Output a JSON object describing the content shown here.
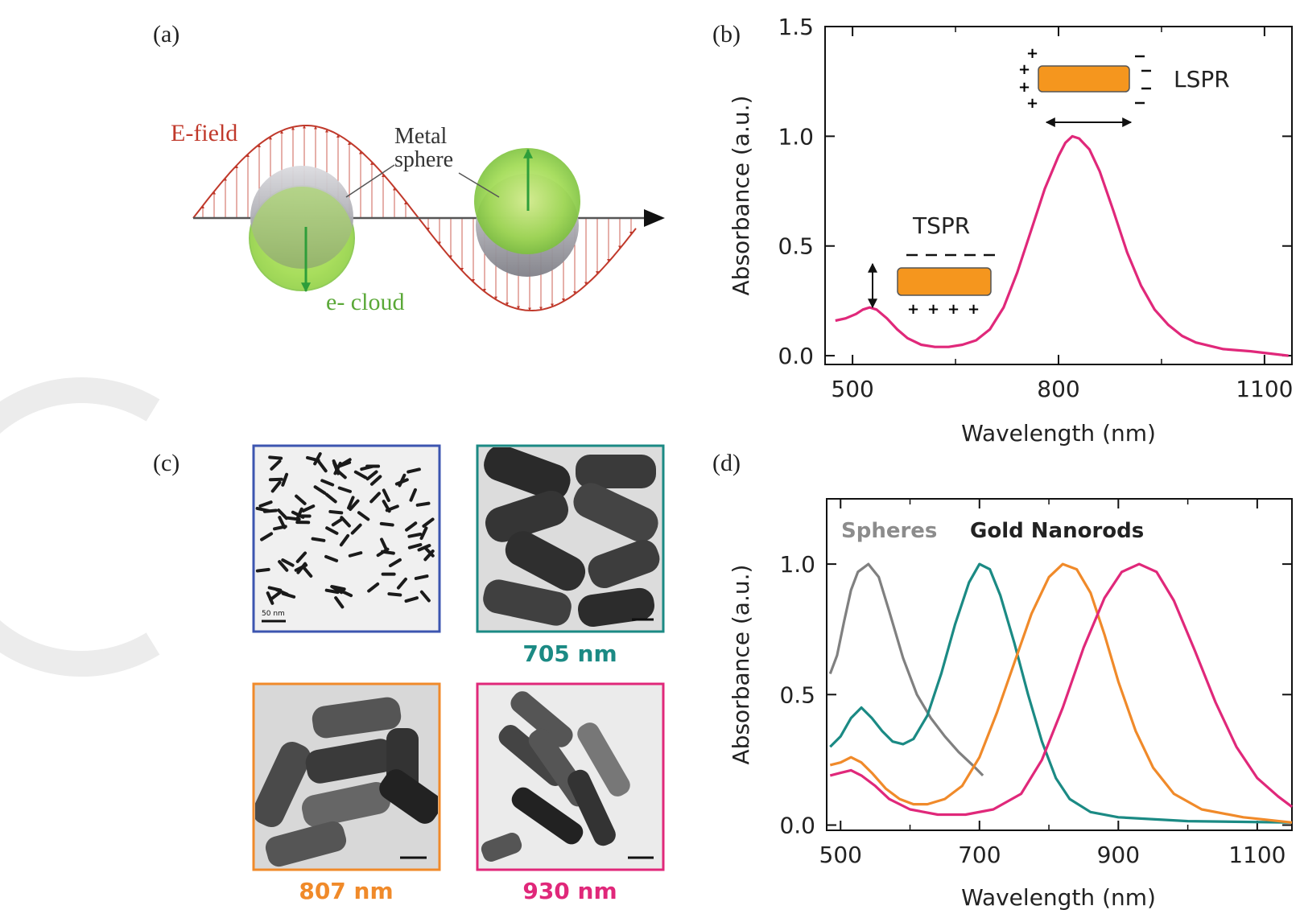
{
  "panels": {
    "a": {
      "label": "(a)",
      "e_field_label": "E-field",
      "metal_label_line1": "Metal",
      "metal_label_line2": "sphere",
      "cloud_label": "e- cloud",
      "colors": {
        "field": "#c0392b",
        "cloud": "#8bd24a",
        "sphere": "#9e9ea4",
        "arrow": "#2e9e3a"
      }
    },
    "b": {
      "label": "(b)",
      "tspr_label": "TSPR",
      "lspr_label": "LSPR",
      "rod_color": "#f5961e"
    },
    "c": {
      "label": "(c)",
      "images": [
        {
          "caption": "",
          "scale_text": "50 nm",
          "border_color": "#3c55b0"
        },
        {
          "caption": "705 nm",
          "scale_text": "",
          "border_color": "#1b8a84"
        },
        {
          "caption": "807 nm",
          "scale_text": "",
          "border_color": "#f08a2a"
        },
        {
          "caption": "930 nm",
          "scale_text": "",
          "border_color": "#e0287a"
        }
      ]
    },
    "d": {
      "label": "(d)",
      "legend_spheres": "Spheres",
      "legend_rods": "Gold Nanorods"
    }
  },
  "chart_data": [
    {
      "type": "line",
      "panel": "b",
      "xlabel": "Wavelength (nm)",
      "ylabel": "Absorbance (a.u.)",
      "xlim": [
        460,
        1140
      ],
      "ylim": [
        -0.04,
        1.5
      ],
      "xticks": [
        500,
        800,
        1100
      ],
      "xtick_labels": [
        "500",
        "800",
        "1100"
      ],
      "yticks": [
        0.0,
        0.5,
        1.0,
        1.5
      ],
      "ytick_labels": [
        "0.0",
        "0.5",
        "1.0",
        "1.5"
      ],
      "series": [
        {
          "color": "#e0287a",
          "points": [
            [
              475,
              0.16
            ],
            [
              490,
              0.17
            ],
            [
              505,
              0.19
            ],
            [
              515,
              0.21
            ],
            [
              525,
              0.22
            ],
            [
              535,
              0.21
            ],
            [
              550,
              0.17
            ],
            [
              565,
              0.12
            ],
            [
              580,
              0.08
            ],
            [
              600,
              0.05
            ],
            [
              620,
              0.04
            ],
            [
              640,
              0.04
            ],
            [
              660,
              0.05
            ],
            [
              680,
              0.07
            ],
            [
              700,
              0.12
            ],
            [
              720,
              0.22
            ],
            [
              740,
              0.38
            ],
            [
              760,
              0.57
            ],
            [
              780,
              0.76
            ],
            [
              800,
              0.91
            ],
            [
              810,
              0.97
            ],
            [
              820,
              1.0
            ],
            [
              830,
              0.99
            ],
            [
              845,
              0.94
            ],
            [
              860,
              0.84
            ],
            [
              880,
              0.66
            ],
            [
              900,
              0.47
            ],
            [
              920,
              0.32
            ],
            [
              940,
              0.21
            ],
            [
              960,
              0.14
            ],
            [
              980,
              0.09
            ],
            [
              1000,
              0.06
            ],
            [
              1040,
              0.03
            ],
            [
              1080,
              0.02
            ],
            [
              1135,
              0.0
            ]
          ]
        }
      ]
    },
    {
      "type": "line",
      "panel": "d",
      "xlabel": "Wavelength (nm)",
      "ylabel": "Absorbance (a.u.)",
      "xlim": [
        480,
        1150
      ],
      "ylim": [
        -0.02,
        1.25
      ],
      "xticks": [
        500,
        700,
        900,
        1100
      ],
      "xtick_labels": [
        "500",
        "700",
        "900",
        "1100"
      ],
      "yticks": [
        0.0,
        0.5,
        1.0
      ],
      "ytick_labels": [
        "0.0",
        "0.5",
        "1.0"
      ],
      "series": [
        {
          "color": "#808080",
          "points": [
            [
              485,
              0.58
            ],
            [
              495,
              0.65
            ],
            [
              505,
              0.78
            ],
            [
              515,
              0.9
            ],
            [
              525,
              0.97
            ],
            [
              540,
              1.0
            ],
            [
              555,
              0.95
            ],
            [
              570,
              0.82
            ],
            [
              590,
              0.64
            ],
            [
              610,
              0.5
            ],
            [
              630,
              0.41
            ],
            [
              650,
              0.34
            ],
            [
              670,
              0.28
            ],
            [
              690,
              0.23
            ],
            [
              705,
              0.19
            ]
          ]
        },
        {
          "color": "#1b8a84",
          "points": [
            [
              485,
              0.3
            ],
            [
              500,
              0.34
            ],
            [
              515,
              0.41
            ],
            [
              530,
              0.45
            ],
            [
              545,
              0.41
            ],
            [
              560,
              0.36
            ],
            [
              575,
              0.32
            ],
            [
              590,
              0.31
            ],
            [
              605,
              0.33
            ],
            [
              625,
              0.42
            ],
            [
              645,
              0.58
            ],
            [
              665,
              0.77
            ],
            [
              685,
              0.93
            ],
            [
              700,
              1.0
            ],
            [
              715,
              0.98
            ],
            [
              730,
              0.88
            ],
            [
              750,
              0.7
            ],
            [
              770,
              0.5
            ],
            [
              790,
              0.32
            ],
            [
              810,
              0.18
            ],
            [
              830,
              0.1
            ],
            [
              860,
              0.05
            ],
            [
              900,
              0.03
            ],
            [
              1000,
              0.015
            ],
            [
              1150,
              0.01
            ]
          ]
        },
        {
          "color": "#f08a2a",
          "points": [
            [
              485,
              0.23
            ],
            [
              500,
              0.24
            ],
            [
              515,
              0.26
            ],
            [
              530,
              0.24
            ],
            [
              545,
              0.2
            ],
            [
              565,
              0.14
            ],
            [
              585,
              0.1
            ],
            [
              605,
              0.08
            ],
            [
              625,
              0.08
            ],
            [
              650,
              0.1
            ],
            [
              675,
              0.15
            ],
            [
              700,
              0.26
            ],
            [
              725,
              0.43
            ],
            [
              750,
              0.62
            ],
            [
              775,
              0.81
            ],
            [
              800,
              0.95
            ],
            [
              820,
              1.0
            ],
            [
              840,
              0.98
            ],
            [
              860,
              0.89
            ],
            [
              880,
              0.73
            ],
            [
              900,
              0.55
            ],
            [
              925,
              0.36
            ],
            [
              950,
              0.22
            ],
            [
              980,
              0.12
            ],
            [
              1020,
              0.06
            ],
            [
              1080,
              0.03
            ],
            [
              1150,
              0.01
            ]
          ]
        },
        {
          "color": "#e0287a",
          "points": [
            [
              485,
              0.19
            ],
            [
              500,
              0.2
            ],
            [
              515,
              0.21
            ],
            [
              530,
              0.19
            ],
            [
              550,
              0.15
            ],
            [
              570,
              0.1
            ],
            [
              600,
              0.06
            ],
            [
              640,
              0.04
            ],
            [
              680,
              0.04
            ],
            [
              720,
              0.06
            ],
            [
              760,
              0.12
            ],
            [
              790,
              0.25
            ],
            [
              820,
              0.45
            ],
            [
              850,
              0.68
            ],
            [
              880,
              0.87
            ],
            [
              905,
              0.97
            ],
            [
              930,
              1.0
            ],
            [
              955,
              0.97
            ],
            [
              980,
              0.86
            ],
            [
              1010,
              0.67
            ],
            [
              1040,
              0.47
            ],
            [
              1070,
              0.3
            ],
            [
              1100,
              0.18
            ],
            [
              1130,
              0.11
            ],
            [
              1150,
              0.07
            ]
          ]
        }
      ]
    }
  ]
}
